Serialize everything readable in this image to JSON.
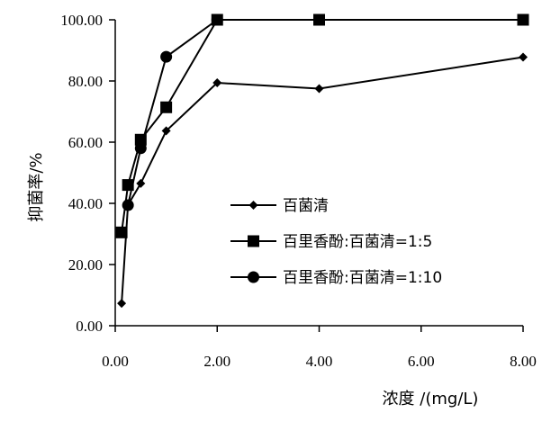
{
  "chart_data": {
    "type": "line",
    "xlabel": "浓度 /(mg/L)",
    "ylabel": "抑菌率/%",
    "xlim": [
      0,
      8
    ],
    "ylim": [
      0,
      100
    ],
    "xticks": [
      "0.00",
      "2.00",
      "4.00",
      "6.00",
      "8.00"
    ],
    "yticks": [
      "0.00",
      "20.00",
      "40.00",
      "60.00",
      "80.00",
      "100.00"
    ],
    "xtick_values": [
      0,
      2,
      4,
      6,
      8
    ],
    "ytick_values": [
      0,
      20,
      40,
      60,
      80,
      100
    ],
    "grid": false,
    "legend_position": "center-right",
    "series": [
      {
        "name": "百菌清",
        "marker": "diamond",
        "color": "#000000",
        "x": [
          0.125,
          0.25,
          0.5,
          1,
          2,
          4,
          8
        ],
        "y": [
          7.3,
          39.5,
          46.5,
          63.7,
          79.4,
          77.5,
          87.8
        ]
      },
      {
        "name": "百里香酚:百菌清=1:5",
        "marker": "square",
        "color": "#000000",
        "x": [
          0.125,
          0.25,
          0.5,
          1,
          2,
          4,
          8
        ],
        "y": [
          30.5,
          46.0,
          60.8,
          71.4,
          100,
          100,
          100
        ]
      },
      {
        "name": "百里香酚:百菌清=1:10",
        "marker": "circle",
        "color": "#000000",
        "x": [
          0.25,
          0.5,
          1,
          2
        ],
        "y": [
          39.4,
          58.0,
          87.9,
          100
        ]
      }
    ]
  }
}
